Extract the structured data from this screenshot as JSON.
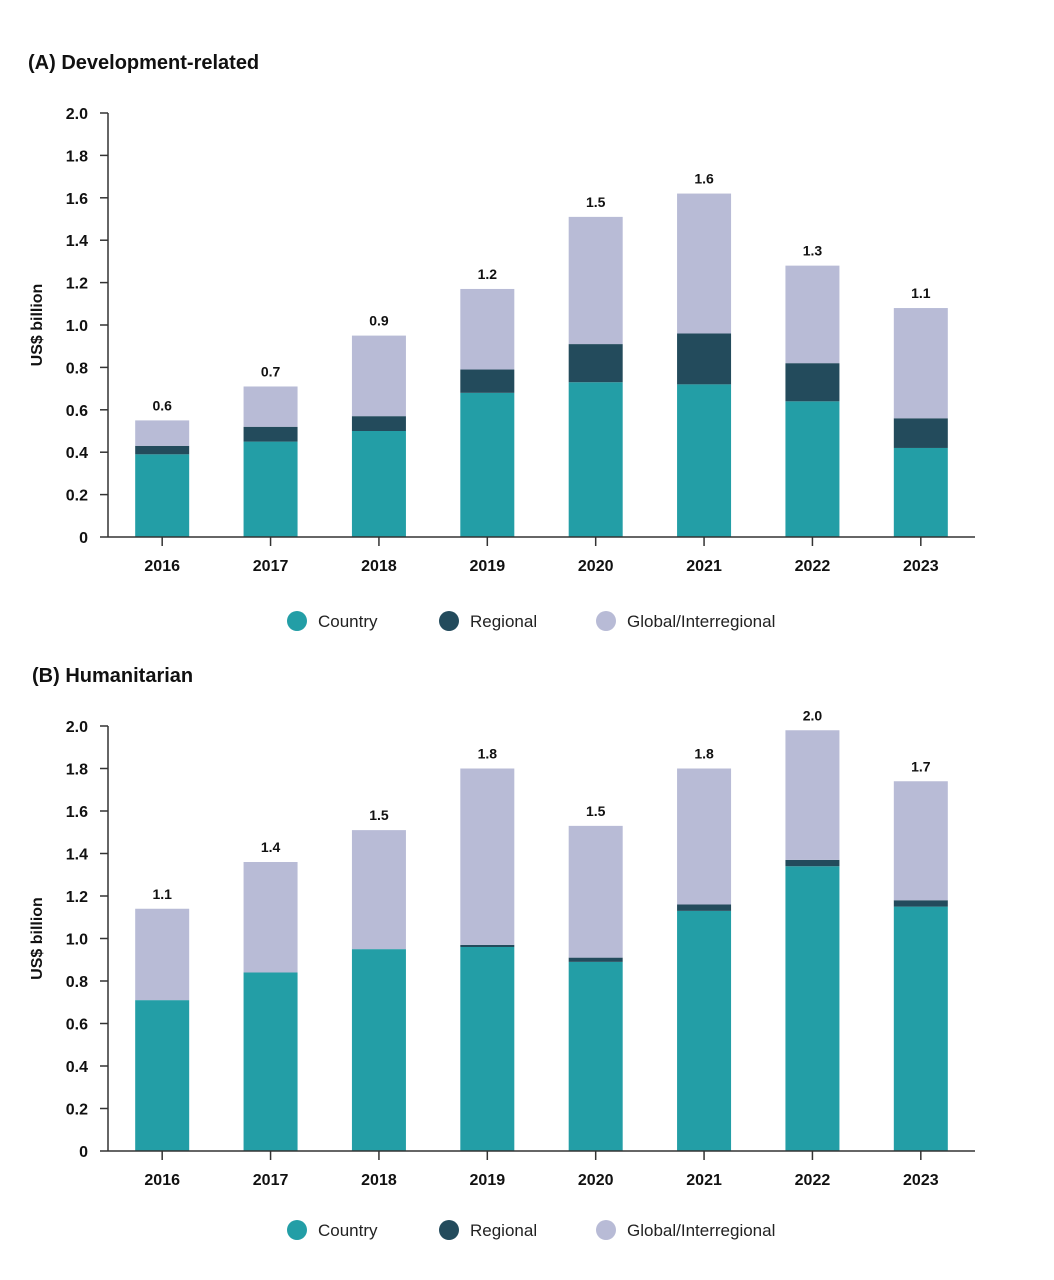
{
  "colors": {
    "Country": "#239ea6",
    "Regional": "#234b5c",
    "Global/Interregional": "#b8bbd6",
    "axis": "#333333"
  },
  "chart_data": [
    {
      "type": "bar",
      "stacked": true,
      "title": "(A) Development-related",
      "ylabel": "US$ billion",
      "xlabel": "",
      "ylim": [
        0,
        2.0
      ],
      "yticks": [
        "0",
        "0.2",
        "0.4",
        "0.6",
        "0.8",
        "1.0",
        "1.2",
        "1.4",
        "1.6",
        "1.8",
        "2.0"
      ],
      "categories": [
        "2016",
        "2017",
        "2018",
        "2019",
        "2020",
        "2021",
        "2022",
        "2023"
      ],
      "series": [
        {
          "name": "Country",
          "values": [
            0.39,
            0.45,
            0.5,
            0.68,
            0.73,
            0.72,
            0.64,
            0.42
          ]
        },
        {
          "name": "Regional",
          "values": [
            0.04,
            0.07,
            0.07,
            0.11,
            0.18,
            0.24,
            0.18,
            0.14
          ]
        },
        {
          "name": "Global/Interregional",
          "values": [
            0.12,
            0.19,
            0.38,
            0.38,
            0.6,
            0.66,
            0.46,
            0.52
          ]
        }
      ],
      "data_labels": [
        "0.6",
        "0.7",
        "0.9",
        "1.2",
        "1.5",
        "1.6",
        "1.3",
        "1.1"
      ],
      "legend": {
        "position": "bottom",
        "entries": [
          "Country",
          "Regional",
          "Global/Interregional"
        ]
      },
      "grid": false
    },
    {
      "type": "bar",
      "stacked": true,
      "title": "(B) Humanitarian",
      "ylabel": "US$ billion",
      "xlabel": "",
      "ylim": [
        0,
        2.0
      ],
      "yticks": [
        "0",
        "0.2",
        "0.4",
        "0.6",
        "0.8",
        "1.0",
        "1.2",
        "1.4",
        "1.6",
        "1.8",
        "2.0"
      ],
      "categories": [
        "2016",
        "2017",
        "2018",
        "2019",
        "2020",
        "2021",
        "2022",
        "2023"
      ],
      "series": [
        {
          "name": "Country",
          "values": [
            0.71,
            0.84,
            0.95,
            0.96,
            0.89,
            1.13,
            1.34,
            1.15
          ]
        },
        {
          "name": "Regional",
          "values": [
            0.0,
            0.0,
            0.0,
            0.01,
            0.02,
            0.03,
            0.03,
            0.03
          ]
        },
        {
          "name": "Global/Interregional",
          "values": [
            0.43,
            0.52,
            0.56,
            0.83,
            0.62,
            0.64,
            0.61,
            0.56
          ]
        }
      ],
      "data_labels": [
        "1.1",
        "1.4",
        "1.5",
        "1.8",
        "1.5",
        "1.8",
        "2.0",
        "1.7"
      ],
      "legend": {
        "position": "bottom",
        "entries": [
          "Country",
          "Regional",
          "Global/Interregional"
        ]
      },
      "grid": false
    }
  ]
}
